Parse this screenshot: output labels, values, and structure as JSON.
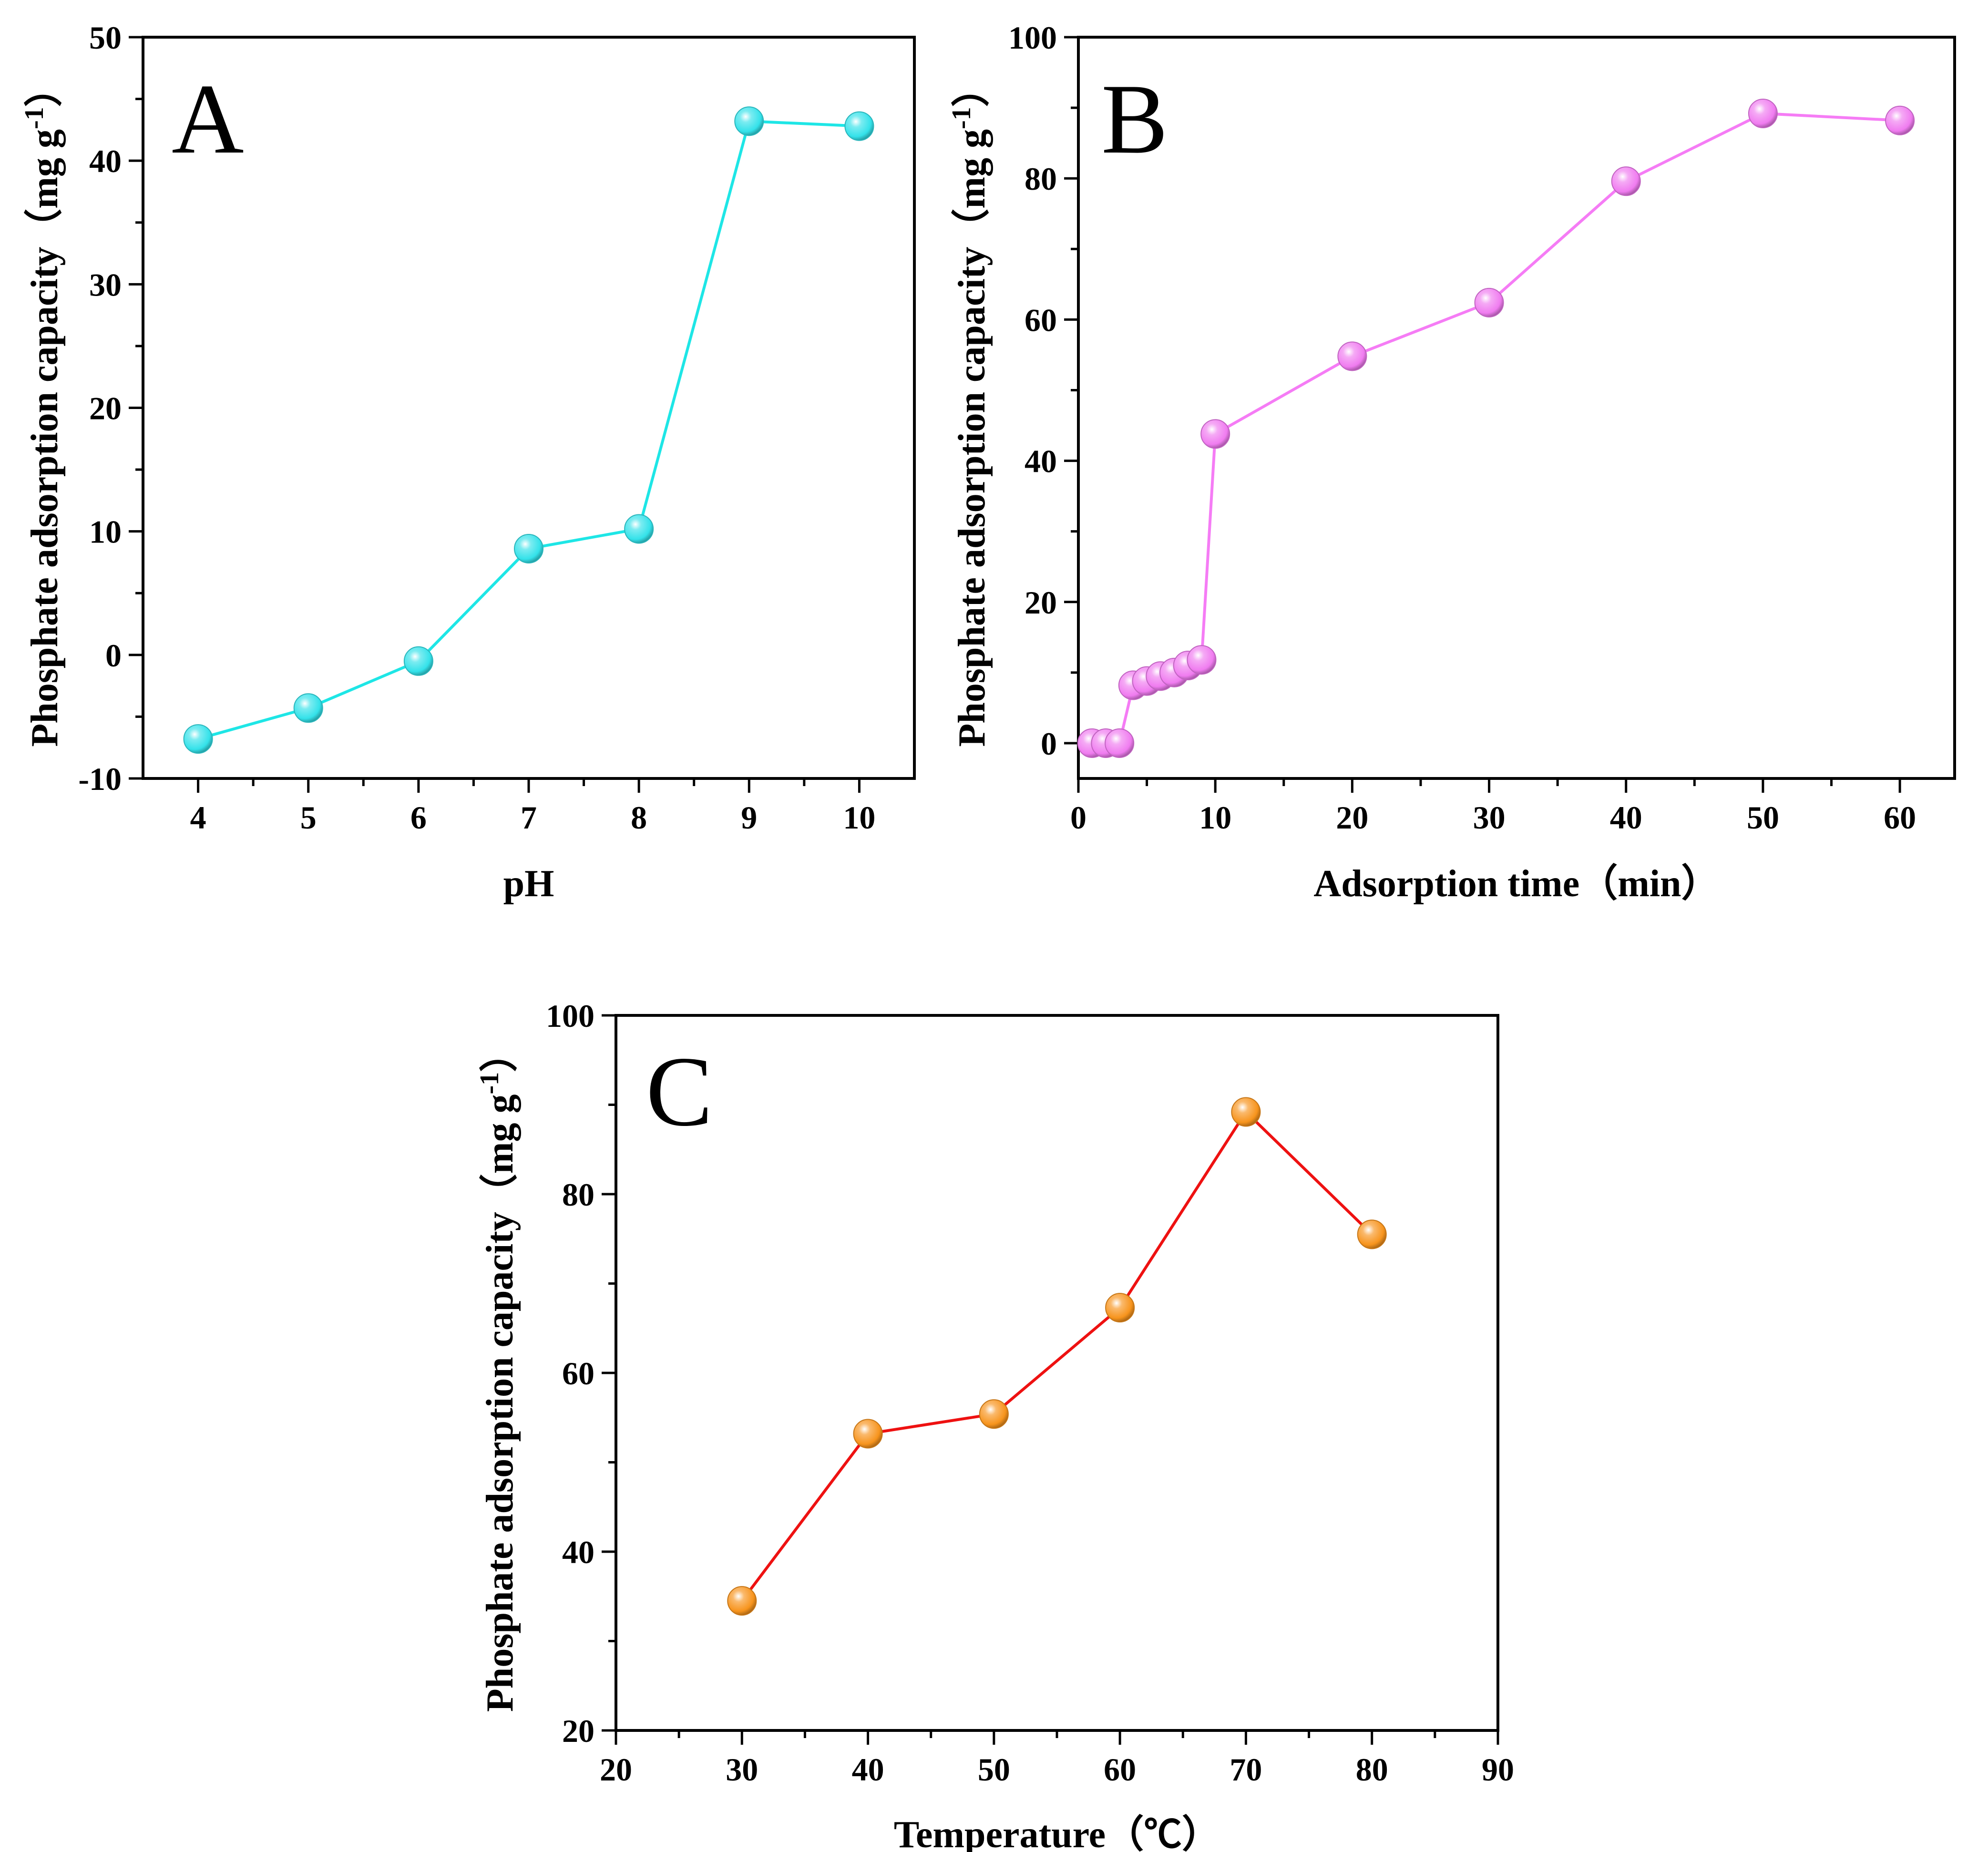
{
  "chart_data": [
    {
      "type": "line",
      "panel_label": "A",
      "xlabel": "pH",
      "ylabel": "Phosphate adsorption capacity（mg g",
      "ylabel_sup": "-1",
      "ylabel_close": "）",
      "xlim": [
        3.5,
        10.5
      ],
      "ylim": [
        -10,
        50
      ],
      "xticks": [
        4,
        5,
        6,
        7,
        8,
        9,
        10
      ],
      "yticks": [
        -10,
        0,
        10,
        20,
        30,
        40,
        50
      ],
      "grid": false,
      "line_color": "#1ee6e6",
      "marker_color": "#34e2ea",
      "series": [
        {
          "x": [
            4,
            5,
            6,
            7,
            8,
            9,
            10
          ],
          "y": [
            -6.8,
            -4.3,
            -0.5,
            8.6,
            10.2,
            43.2,
            42.8
          ]
        }
      ]
    },
    {
      "type": "line",
      "panel_label": "B",
      "xlabel": "Adsorption time（min）",
      "ylabel": "Phosphate adsorption capacity（mg g",
      "ylabel_sup": "-1",
      "ylabel_close": "）",
      "xlim": [
        0,
        64
      ],
      "ylim": [
        -5,
        100
      ],
      "xticks": [
        0,
        10,
        20,
        30,
        40,
        50,
        60
      ],
      "yticks": [
        0,
        20,
        40,
        60,
        80,
        100
      ],
      "grid": false,
      "line_color": "#f57cf5",
      "marker_color": "#f07cf0",
      "series": [
        {
          "x": [
            1,
            2,
            3,
            4,
            5,
            6,
            7,
            8,
            9,
            10,
            20,
            30,
            40,
            50,
            60
          ],
          "y": [
            0,
            0,
            0,
            8.2,
            8.8,
            9.5,
            10,
            11,
            11.8,
            43.8,
            54.8,
            62.4,
            79.6,
            89.2,
            88.2
          ]
        }
      ]
    },
    {
      "type": "line",
      "panel_label": "C",
      "xlabel": "Temperature（℃）",
      "ylabel": "Phosphate adsorption capacity（mg g",
      "ylabel_sup": "-1",
      "ylabel_close": "）",
      "xlim": [
        20,
        90
      ],
      "ylim": [
        20,
        100
      ],
      "xticks": [
        20,
        30,
        40,
        50,
        60,
        70,
        80,
        90
      ],
      "yticks": [
        20,
        40,
        60,
        80,
        100
      ],
      "grid": false,
      "line_color": "#ee1111",
      "marker_color": "#f7941d",
      "series": [
        {
          "x": [
            30,
            40,
            50,
            60,
            70,
            80
          ],
          "y": [
            34.5,
            53.2,
            55.4,
            67.3,
            89.2,
            75.5
          ]
        }
      ]
    }
  ]
}
